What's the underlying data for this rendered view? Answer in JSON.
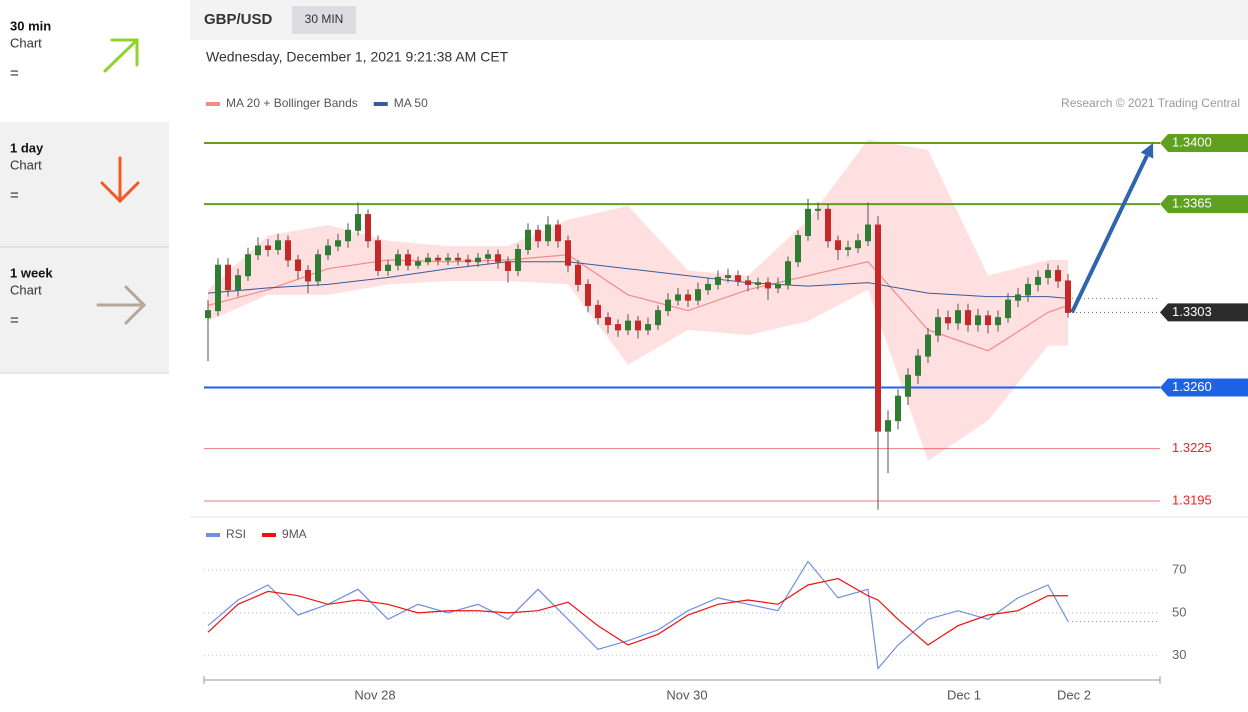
{
  "sidebar": [
    {
      "period": "30 min",
      "label": "Chart",
      "status": "="
    },
    {
      "period": "1 day",
      "label": "Chart",
      "status": "="
    },
    {
      "period": "1 week",
      "label": "Chart",
      "status": "="
    }
  ],
  "header": {
    "symbol": "GBP/USD",
    "interval": "30 MIN",
    "timestamp": "Wednesday, December 1, 2021 9:21:38 AM CET",
    "credit": "Research © 2021 Trading Central"
  },
  "chart_data": [
    {
      "type": "candlestick",
      "legend": [
        {
          "name": "MA 20 + Bollinger Bands",
          "color": "#f58a8a"
        },
        {
          "name": "MA 50",
          "color": "#3a5a9a"
        }
      ],
      "xlim": [
        -0.4,
        95.2
      ],
      "xticks": [
        {
          "value": 16.7,
          "label": "Nov 28"
        },
        {
          "value": 47.9,
          "label": "Nov 30"
        },
        {
          "value": 75.6,
          "label": "Dec 1"
        },
        {
          "value": 86.6,
          "label": "Dec 2"
        }
      ],
      "ylim": [
        1.3187,
        1.3416
      ],
      "up_color": "#2e7d32",
      "down_color": "#c62828",
      "open": [
        1.33,
        1.3304,
        1.333,
        1.3316,
        1.3324,
        1.3336,
        1.3341,
        1.3339,
        1.3344,
        1.3333,
        1.3327,
        1.3321,
        1.3336,
        1.3341,
        1.3344,
        1.335,
        1.3359,
        1.3344,
        1.3327,
        1.333,
        1.3336,
        1.333,
        1.3332,
        1.3334,
        1.3333,
        1.3334,
        1.3333,
        1.3332,
        1.3334,
        1.3336,
        1.3332,
        1.3327,
        1.3339,
        1.335,
        1.3344,
        1.3353,
        1.3344,
        1.333,
        1.3319,
        1.3307,
        1.33,
        1.3296,
        1.3293,
        1.3298,
        1.3293,
        1.3296,
        1.3304,
        1.331,
        1.3313,
        1.331,
        1.3316,
        1.3319,
        1.3323,
        1.3324,
        1.3321,
        1.3319,
        1.332,
        1.3317,
        1.3319,
        1.3332,
        1.3347,
        1.3362,
        1.3362,
        1.3344,
        1.3339,
        1.334,
        1.3344,
        1.3353,
        1.3235,
        1.3241,
        1.3255,
        1.3267,
        1.3278,
        1.329,
        1.33,
        1.3297,
        1.3304,
        1.3296,
        1.3301,
        1.3296,
        1.33,
        1.331,
        1.3313,
        1.3319,
        1.3323,
        1.3327,
        1.3321
      ],
      "high": [
        1.331,
        1.3334,
        1.3334,
        1.3328,
        1.334,
        1.3346,
        1.3345,
        1.3348,
        1.3347,
        1.3336,
        1.333,
        1.3339,
        1.3345,
        1.3348,
        1.3354,
        1.3366,
        1.3362,
        1.3347,
        1.3333,
        1.3339,
        1.3339,
        1.3335,
        1.3337,
        1.3336,
        1.3337,
        1.3337,
        1.3336,
        1.3337,
        1.3339,
        1.3339,
        1.3335,
        1.3342,
        1.3354,
        1.3353,
        1.3358,
        1.3356,
        1.3347,
        1.3333,
        1.3322,
        1.331,
        1.3303,
        1.3299,
        1.3302,
        1.3301,
        1.33,
        1.3307,
        1.3314,
        1.3317,
        1.3316,
        1.332,
        1.3323,
        1.3327,
        1.3328,
        1.3327,
        1.3324,
        1.3323,
        1.3323,
        1.3323,
        1.3335,
        1.335,
        1.3368,
        1.3366,
        1.3365,
        1.3347,
        1.3344,
        1.3348,
        1.3366,
        1.3358,
        1.3247,
        1.3259,
        1.3271,
        1.3282,
        1.3294,
        1.3305,
        1.3304,
        1.3308,
        1.3308,
        1.3305,
        1.3304,
        1.3304,
        1.3314,
        1.3317,
        1.3323,
        1.3327,
        1.3331,
        1.333,
        1.3325
      ],
      "low": [
        1.3275,
        1.3301,
        1.3312,
        1.3312,
        1.3321,
        1.3333,
        1.3335,
        1.3336,
        1.3329,
        1.3322,
        1.3314,
        1.3318,
        1.3333,
        1.3338,
        1.334,
        1.3347,
        1.334,
        1.3324,
        1.3324,
        1.3327,
        1.3327,
        1.3328,
        1.333,
        1.333,
        1.333,
        1.333,
        1.3329,
        1.3329,
        1.3331,
        1.3328,
        1.332,
        1.3324,
        1.3336,
        1.334,
        1.3341,
        1.334,
        1.3326,
        1.3315,
        1.3303,
        1.3296,
        1.3291,
        1.3289,
        1.329,
        1.3288,
        1.329,
        1.3293,
        1.3301,
        1.3307,
        1.3306,
        1.3307,
        1.3313,
        1.3316,
        1.332,
        1.3318,
        1.3315,
        1.3316,
        1.331,
        1.3314,
        1.3316,
        1.3329,
        1.3344,
        1.3356,
        1.334,
        1.3333,
        1.3335,
        1.3337,
        1.3341,
        1.319,
        1.3211,
        1.3236,
        1.325,
        1.3262,
        1.3274,
        1.3286,
        1.3293,
        1.3293,
        1.3292,
        1.3292,
        1.3291,
        1.3292,
        1.3297,
        1.3306,
        1.3309,
        1.3315,
        1.3319,
        1.3317,
        1.33
      ],
      "close": [
        1.3304,
        1.333,
        1.3316,
        1.3324,
        1.3336,
        1.3341,
        1.3339,
        1.3344,
        1.3333,
        1.3327,
        1.3321,
        1.3336,
        1.3341,
        1.3344,
        1.335,
        1.3359,
        1.3344,
        1.3327,
        1.333,
        1.3336,
        1.333,
        1.3332,
        1.3334,
        1.3333,
        1.3334,
        1.3333,
        1.3332,
        1.3334,
        1.3336,
        1.3332,
        1.3327,
        1.3339,
        1.335,
        1.3344,
        1.3353,
        1.3344,
        1.333,
        1.3319,
        1.3307,
        1.33,
        1.3296,
        1.3293,
        1.3298,
        1.3293,
        1.3296,
        1.3304,
        1.331,
        1.3313,
        1.331,
        1.3316,
        1.3319,
        1.3323,
        1.3324,
        1.3321,
        1.3319,
        1.332,
        1.3317,
        1.3319,
        1.3332,
        1.3347,
        1.3362,
        1.3362,
        1.3344,
        1.3339,
        1.334,
        1.3344,
        1.3353,
        1.3235,
        1.3241,
        1.3255,
        1.3267,
        1.3278,
        1.329,
        1.33,
        1.3297,
        1.3304,
        1.3296,
        1.3301,
        1.3296,
        1.33,
        1.331,
        1.3313,
        1.3319,
        1.3323,
        1.3327,
        1.3321,
        1.3303
      ],
      "ma_x": [
        0,
        6,
        12,
        18,
        24,
        30,
        36,
        42,
        48,
        54,
        60,
        66,
        72,
        78,
        84,
        86
      ],
      "ma50": [
        1.3314,
        1.3317,
        1.3319,
        1.3323,
        1.3328,
        1.3332,
        1.3332,
        1.3328,
        1.3324,
        1.332,
        1.3318,
        1.332,
        1.3314,
        1.3312,
        1.3312,
        1.3311
      ],
      "ma20": [
        1.3307,
        1.3316,
        1.3328,
        1.3333,
        1.3332,
        1.3333,
        1.3336,
        1.3313,
        1.3304,
        1.3316,
        1.3324,
        1.3332,
        1.3293,
        1.3281,
        1.3303,
        1.3307
      ],
      "band_upper": [
        1.3316,
        1.3347,
        1.3353,
        1.3344,
        1.3341,
        1.3341,
        1.3356,
        1.3364,
        1.3327,
        1.3324,
        1.3356,
        1.3402,
        1.3396,
        1.3324,
        1.3333,
        1.3333
      ],
      "band_lower": [
        1.3298,
        1.3313,
        1.3313,
        1.3319,
        1.3321,
        1.3321,
        1.3319,
        1.3273,
        1.3293,
        1.329,
        1.3298,
        1.3316,
        1.3218,
        1.3241,
        1.3284,
        1.3284
      ],
      "levels": [
        {
          "value": 1.34,
          "label": "1.3400",
          "color": "#5fa01e",
          "tag": true
        },
        {
          "value": 1.3365,
          "label": "1.3365",
          "color": "#5fa01e",
          "tag": true
        },
        {
          "value": 1.3303,
          "label": "1.3303",
          "color": "#2b2b2b",
          "tag": true
        },
        {
          "value": 1.326,
          "label": "1.3260",
          "color": "#1e63e6",
          "tag": true
        },
        {
          "value": 1.3225,
          "label": "1.3225",
          "color": "#ee2222",
          "tag": false
        },
        {
          "value": 1.3195,
          "label": "1.3195",
          "color": "#ee2222",
          "tag": false
        }
      ],
      "arrow_color": "#2f65ad"
    },
    {
      "type": "line",
      "series": [
        {
          "name": "RSI",
          "color": "#6f8fe0",
          "values": [
            44,
            56,
            63,
            49,
            54,
            61,
            47,
            54,
            50,
            54,
            47,
            61,
            47,
            33,
            37,
            42,
            51,
            57,
            54,
            51,
            74,
            57,
            61,
            24,
            35,
            47,
            51,
            47,
            57,
            63,
            46
          ]
        },
        {
          "name": "9MA",
          "color": "#ee1111",
          "values": [
            41,
            54,
            60,
            58,
            54,
            56,
            54,
            50,
            51,
            51,
            50,
            51,
            55,
            44,
            35,
            40,
            49,
            54,
            56,
            54,
            63,
            66,
            58,
            56,
            47,
            35,
            44,
            49,
            51,
            58,
            58
          ]
        }
      ],
      "x": [
        0,
        3,
        6,
        9,
        12,
        15,
        18,
        21,
        24,
        27,
        30,
        33,
        36,
        39,
        42,
        45,
        48,
        51,
        54,
        57,
        60,
        63,
        66,
        67,
        69,
        72,
        75,
        78,
        81,
        84,
        86
      ],
      "ylim": [
        21,
        84
      ],
      "yticks": [
        70,
        50,
        30
      ]
    }
  ]
}
